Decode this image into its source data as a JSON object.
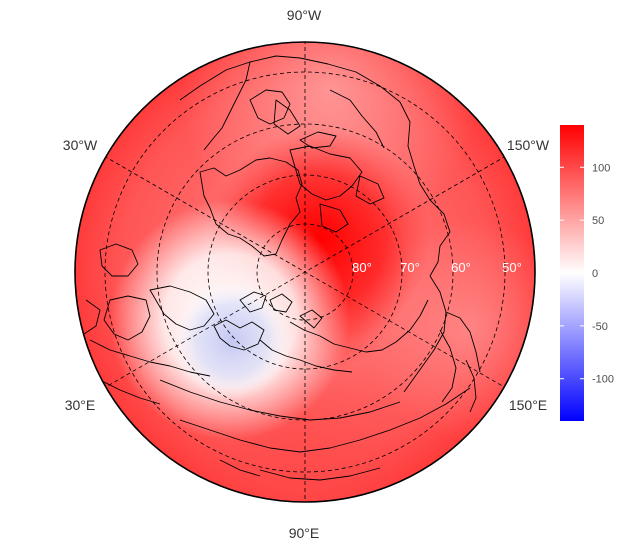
{
  "map": {
    "projection": "north-polar-stereographic",
    "longitude_labels": [
      {
        "id": "lon-90w",
        "text": "90°W"
      },
      {
        "id": "lon-30w",
        "text": "30°W"
      },
      {
        "id": "lon-150w",
        "text": "150°W"
      },
      {
        "id": "lon-30e",
        "text": "30°E"
      },
      {
        "id": "lon-150e",
        "text": "150°E"
      },
      {
        "id": "lon-90e",
        "text": "90°E"
      }
    ],
    "latitude_labels": [
      {
        "id": "lat-80",
        "text": "80°"
      },
      {
        "id": "lat-70",
        "text": "70°"
      },
      {
        "id": "lat-60",
        "text": "60°"
      },
      {
        "id": "lat-50",
        "text": "50°"
      }
    ],
    "field_colors": {
      "high": "#ff0000",
      "mid": "#ffffff",
      "low": "#0000ff"
    }
  },
  "colorbar": {
    "min": -140,
    "max": 140,
    "ticks": [
      {
        "value": 100,
        "label": "100"
      },
      {
        "value": 50,
        "label": "50"
      },
      {
        "value": 0,
        "label": "0"
      },
      {
        "value": -50,
        "label": "-50"
      },
      {
        "value": -100,
        "label": "-100"
      }
    ],
    "color_high": "#ff0000",
    "color_mid": "#ffffff",
    "color_low": "#0000ff"
  }
}
